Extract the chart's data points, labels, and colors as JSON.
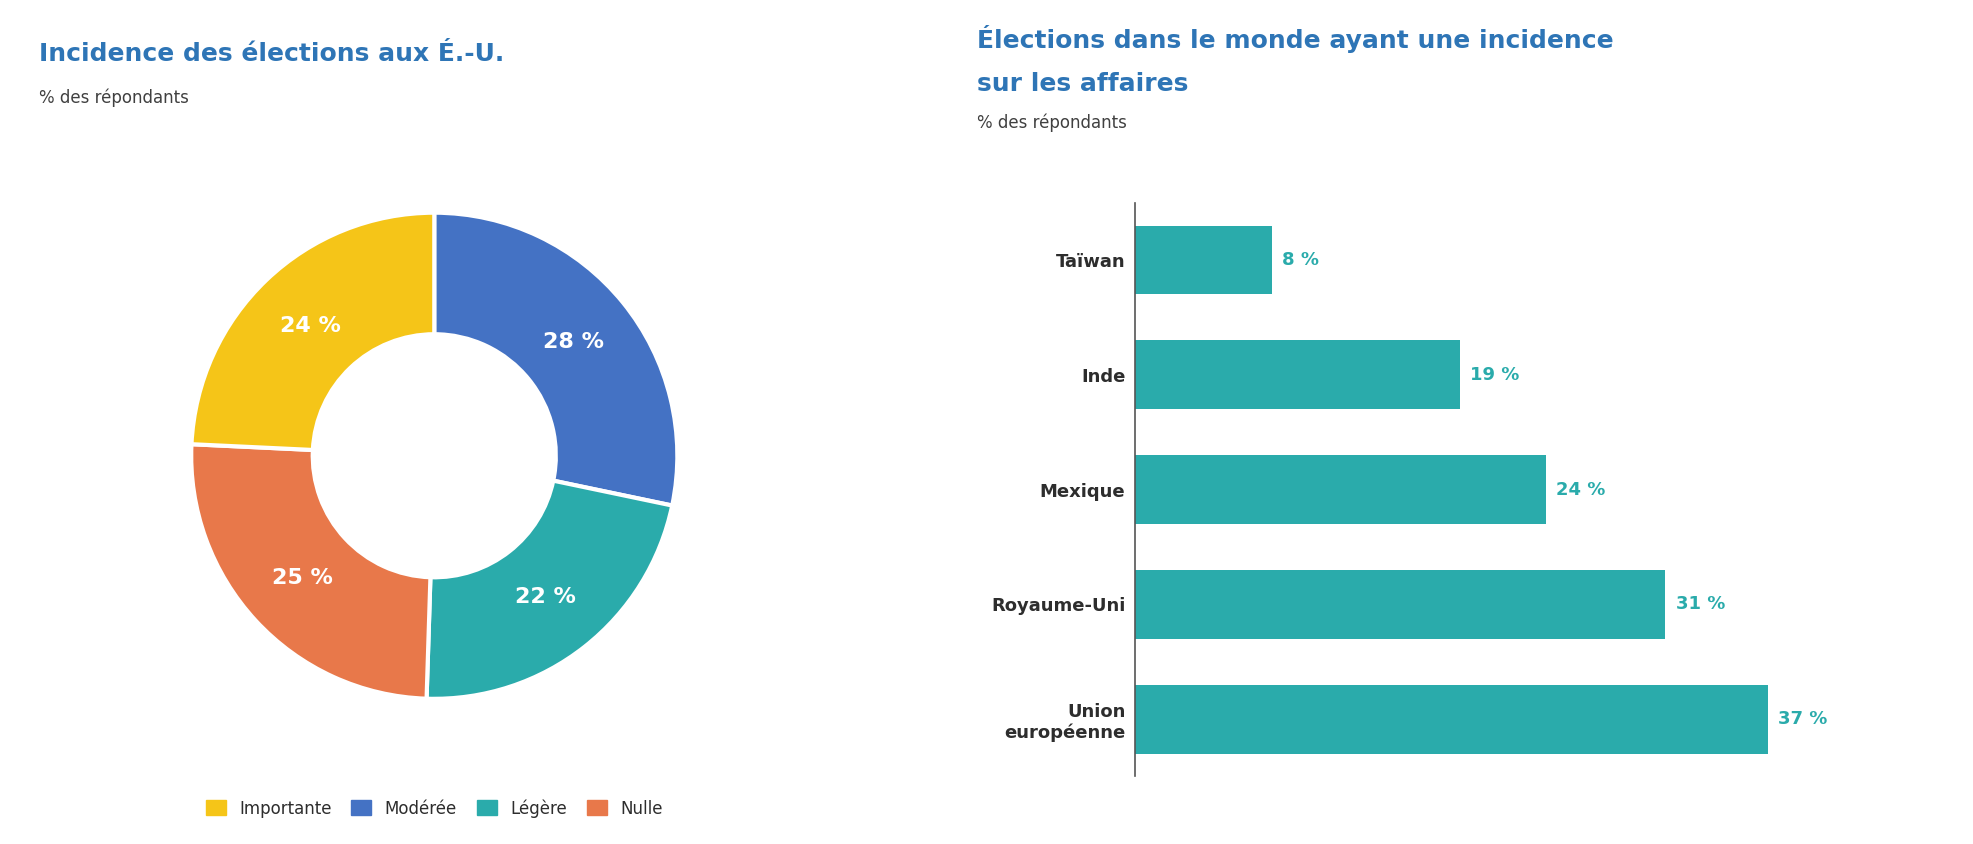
{
  "pie_title": "Incidence des élections aux É.-U.",
  "pie_subtitle": "% des répondants",
  "pie_values": [
    28,
    22,
    25,
    24
  ],
  "pie_labels": [
    "28 %",
    "22 %",
    "25 %",
    "24 %"
  ],
  "pie_colors": [
    "#4472C4",
    "#2AABAB",
    "#E8784A",
    "#F5C518"
  ],
  "pie_legend_colors": [
    "#F5C518",
    "#4472C4",
    "#2AABAB",
    "#E8784A"
  ],
  "pie_legend_labels": [
    "Importante",
    "Modérée",
    "Légère",
    "Nulle"
  ],
  "bar_title_line1": "Élections dans le monde ayant une incidence",
  "bar_title_line2": "sur les affaires",
  "bar_subtitle": "% des répondants",
  "bar_categories": [
    "Union\neuropéenne",
    "Royaume-Uni",
    "Mexique",
    "Inde",
    "Taïwan"
  ],
  "bar_values": [
    37,
    31,
    24,
    19,
    8
  ],
  "bar_color": "#2AABAB",
  "bar_label_color": "#2AABAB",
  "title_color": "#2E75B6",
  "subtitle_color": "#404040",
  "text_color": "#2D2D2D",
  "bg_color": "#FFFFFF",
  "axis_line_color": "#555555"
}
